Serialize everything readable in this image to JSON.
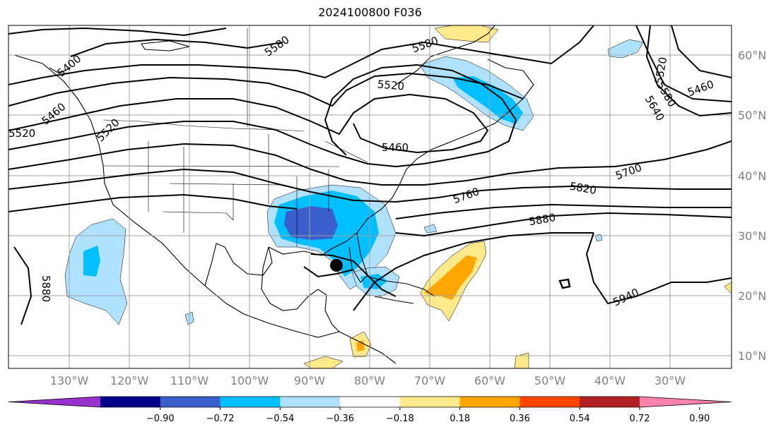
{
  "title": "2024100800 F036",
  "map": {
    "lat_labels": [
      "60°N",
      "50°N",
      "40°N",
      "30°N",
      "20°N",
      "10°N"
    ],
    "lon_labels": [
      "130°W",
      "120°W",
      "110°W",
      "100°W",
      "90°W",
      "80°W",
      "70°W",
      "60°W",
      "50°W",
      "40°W",
      "30°W"
    ],
    "contour_labels": [
      "5400",
      "5580",
      "5580",
      "5460",
      "5520",
      "5520",
      "5640",
      "5520",
      "5580",
      "5460",
      "5460",
      "5700",
      "5760",
      "5820",
      "5880",
      "5940",
      "5880",
      "5520"
    ],
    "storm_marker": "hurricane-position-marker"
  },
  "colorbar": {
    "labels": [
      "−0.90",
      "−0.72",
      "−0.54",
      "−0.36",
      "−0.18",
      "0.18",
      "0.36",
      "0.54",
      "0.72",
      "0.90"
    ],
    "colors": [
      "#9932cc",
      "#00008b",
      "#3a5fcd",
      "#00bfff",
      "#b0e2ff",
      "#ffffff",
      "#ffe98a",
      "#ffa500",
      "#ff4500",
      "#b22222",
      "#ff82ab"
    ]
  }
}
